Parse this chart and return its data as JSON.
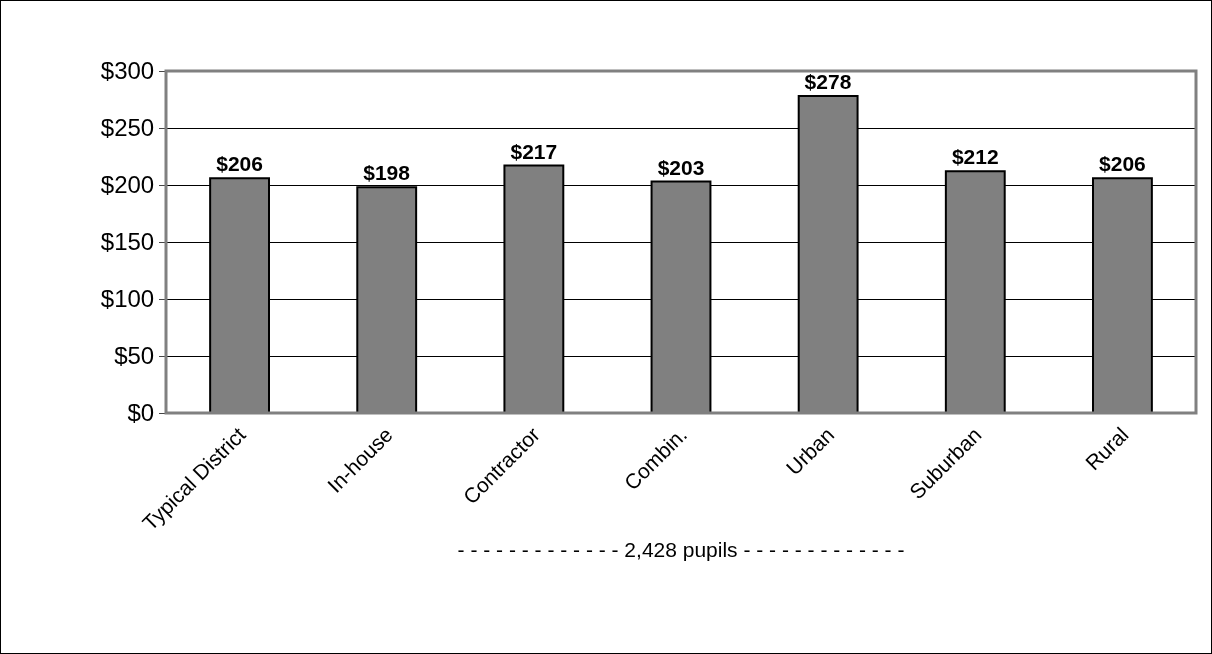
{
  "chart_data": {
    "type": "bar",
    "categories": [
      "Typical District",
      "In-house",
      "Contractor",
      "Combin.",
      "Urban",
      "Suburban",
      "Rural"
    ],
    "values": [
      206,
      198,
      217,
      203,
      278,
      212,
      206
    ],
    "value_labels": [
      "$206",
      "$198",
      "$217",
      "$203",
      "$278",
      "$212",
      "$206"
    ],
    "color": "#808080",
    "xlabel": "- - - - - - - - - - - - - 2,428 pupils - - - - - - - - - - - - -",
    "ylim": [
      0,
      300
    ],
    "yticks": [
      {
        "value": 0,
        "label": "$0"
      },
      {
        "value": 50,
        "label": "$50"
      },
      {
        "value": 100,
        "label": "$100"
      },
      {
        "value": 150,
        "label": "$150"
      },
      {
        "value": 200,
        "label": "$200"
      },
      {
        "value": 250,
        "label": "$250"
      },
      {
        "value": 300,
        "label": "$300"
      }
    ],
    "grid": "y"
  }
}
